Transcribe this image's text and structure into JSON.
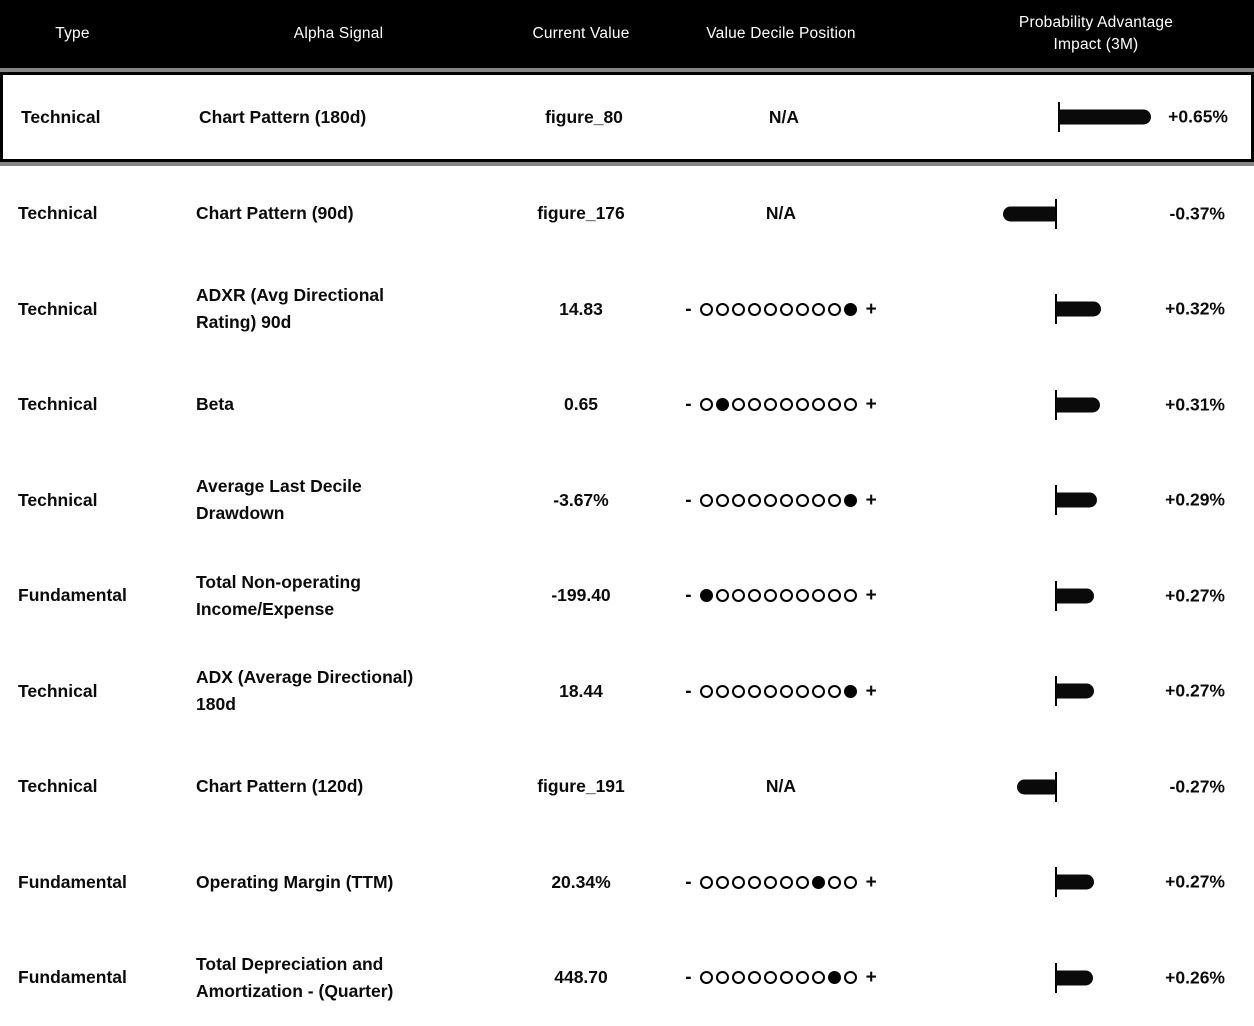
{
  "table": {
    "columns": [
      {
        "id": "type",
        "label": "Type"
      },
      {
        "id": "signal",
        "label": "Alpha Signal"
      },
      {
        "id": "value",
        "label": "Current Value"
      },
      {
        "id": "decile",
        "label": "Value Decile Position"
      },
      {
        "id": "impact",
        "label": "Probability Advantage Impact (3M)"
      }
    ],
    "na_label": "N/A",
    "decile_scale": {
      "min_symbol": "-",
      "max_symbol": "+",
      "total": 10
    },
    "rows": [
      {
        "type": "Technical",
        "signal": "Chart Pattern (180d)",
        "value": "figure_80",
        "decile": null,
        "impact_label": "+0.65%",
        "impact_pct": 0.65,
        "selected": true
      },
      {
        "type": "Technical",
        "signal": "Chart Pattern (90d)",
        "value": "figure_176",
        "decile": null,
        "impact_label": "-0.37%",
        "impact_pct": -0.37,
        "selected": false
      },
      {
        "type": "Technical",
        "signal": "ADXR (Avg Directional Rating) 90d",
        "value": "14.83",
        "decile": 10,
        "impact_label": "+0.32%",
        "impact_pct": 0.32,
        "selected": false
      },
      {
        "type": "Technical",
        "signal": "Beta",
        "value": "0.65",
        "decile": 2,
        "impact_label": "+0.31%",
        "impact_pct": 0.31,
        "selected": false
      },
      {
        "type": "Technical",
        "signal": "Average Last Decile Drawdown",
        "value": "-3.67%",
        "decile": 10,
        "impact_label": "+0.29%",
        "impact_pct": 0.29,
        "selected": false
      },
      {
        "type": "Fundamental",
        "signal": "Total Non-operating Income/Expense",
        "value": "-199.40",
        "decile": 1,
        "impact_label": "+0.27%",
        "impact_pct": 0.27,
        "selected": false
      },
      {
        "type": "Technical",
        "signal": "ADX (Average Directional) 180d",
        "value": "18.44",
        "decile": 10,
        "impact_label": "+0.27%",
        "impact_pct": 0.27,
        "selected": false
      },
      {
        "type": "Technical",
        "signal": "Chart Pattern (120d)",
        "value": "figure_191",
        "decile": null,
        "impact_label": "-0.27%",
        "impact_pct": -0.27,
        "selected": false
      },
      {
        "type": "Fundamental",
        "signal": "Operating Margin (TTM)",
        "value": "20.34%",
        "decile": 8,
        "impact_label": "+0.27%",
        "impact_pct": 0.27,
        "selected": false
      },
      {
        "type": "Fundamental",
        "signal": "Total Depreciation and Amortization - (Quarter)",
        "value": "448.70",
        "decile": 9,
        "impact_label": "+0.26%",
        "impact_pct": 0.26,
        "selected": false
      }
    ]
  },
  "chart_data": {
    "type": "bar",
    "title": "Probability Advantage Impact (3M)",
    "categories": [
      "Chart Pattern (180d)",
      "Chart Pattern (90d)",
      "ADXR (Avg Directional Rating) 90d",
      "Beta",
      "Average Last Decile Drawdown",
      "Total Non-operating Income/Expense",
      "ADX (Average Directional) 180d",
      "Chart Pattern (120d)",
      "Operating Margin (TTM)",
      "Total Depreciation and Amortization - (Quarter)"
    ],
    "values": [
      0.65,
      -0.37,
      0.32,
      0.31,
      0.29,
      0.27,
      0.27,
      -0.27,
      0.27,
      0.26
    ],
    "decile_positions": [
      null,
      null,
      10,
      2,
      10,
      1,
      10,
      null,
      8,
      9
    ],
    "unit": "%",
    "xlabel": "",
    "ylabel": "Probability Advantage Impact (3M)",
    "orientation": "horizontal",
    "baseline": 0
  },
  "colors": {
    "header_bg": "#000000",
    "header_text": "#ffffff",
    "body_text": "#0b0b0b",
    "bar": "#0a0a0a",
    "selection_border": "#000000",
    "selection_outline": "#858585"
  }
}
